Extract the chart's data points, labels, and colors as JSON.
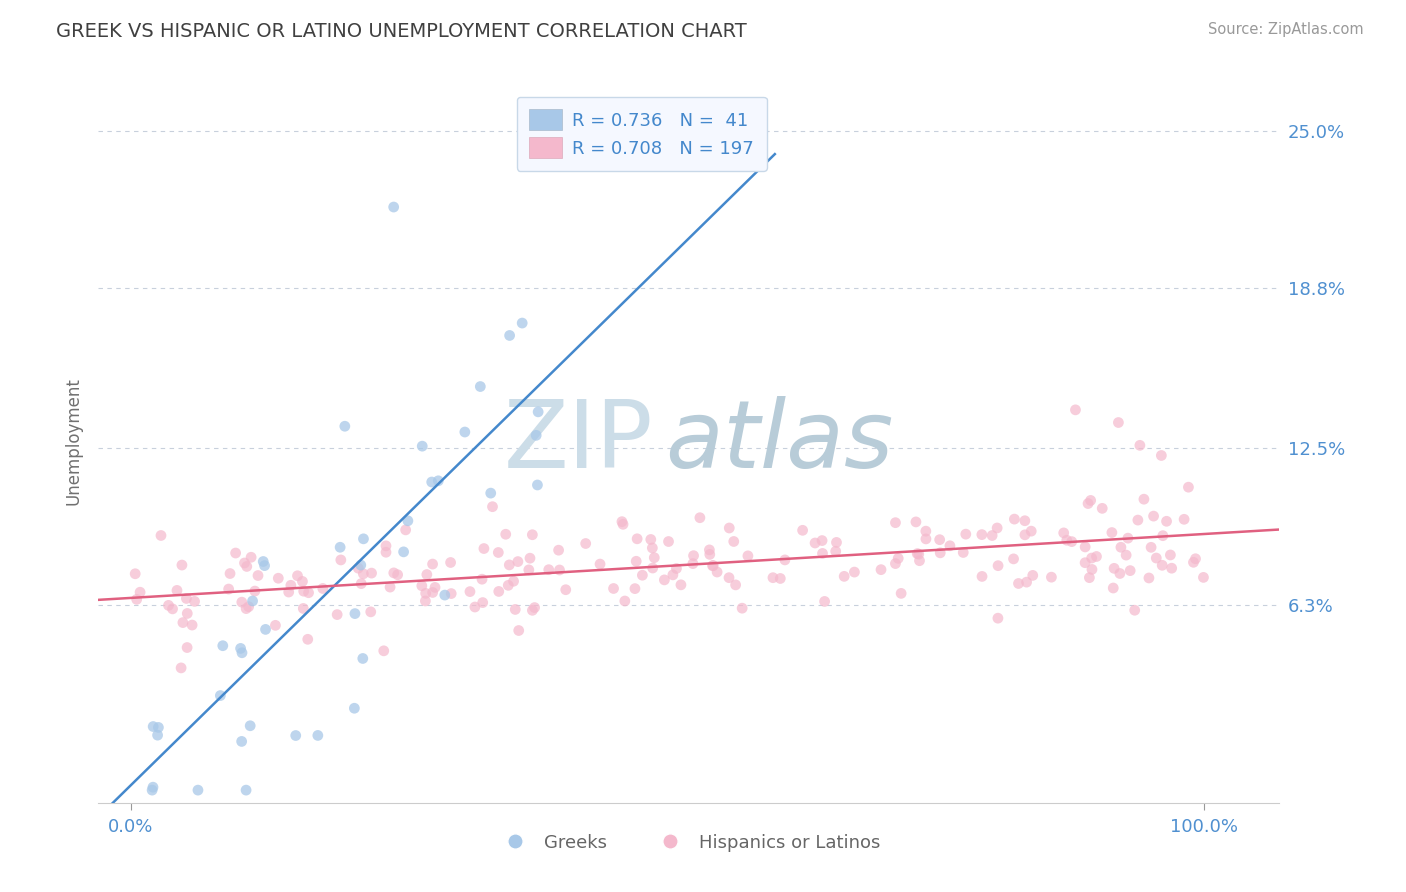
{
  "title": "GREEK VS HISPANIC OR LATINO UNEMPLOYMENT CORRELATION CHART",
  "source_text": "Source: ZipAtlas.com",
  "ylabel": "Unemployment",
  "greek_R": 0.736,
  "greek_N": 41,
  "hispanic_R": 0.708,
  "hispanic_N": 197,
  "greek_color": "#a8c8e8",
  "hispanic_color": "#f4b8cc",
  "greek_line_color": "#4488cc",
  "hispanic_line_color": "#e06080",
  "watermark_zip_color": "#ccdde8",
  "watermark_atlas_color": "#b8ccd8",
  "background_color": "#ffffff",
  "grid_color": "#c8d0dc",
  "title_color": "#404040",
  "axis_label_color": "#5090d0",
  "ylabel_color": "#707070",
  "legend_face_color": "#f5f8ff",
  "legend_edge_color": "#c8d8e8",
  "y_tick_vals": [
    6.3,
    12.5,
    18.8,
    25.0
  ],
  "y_tick_labels": [
    "6.3%",
    "12.5%",
    "18.8%",
    "25.0%"
  ],
  "xlim": [
    -3,
    107
  ],
  "ylim": [
    -1.5,
    27
  ]
}
